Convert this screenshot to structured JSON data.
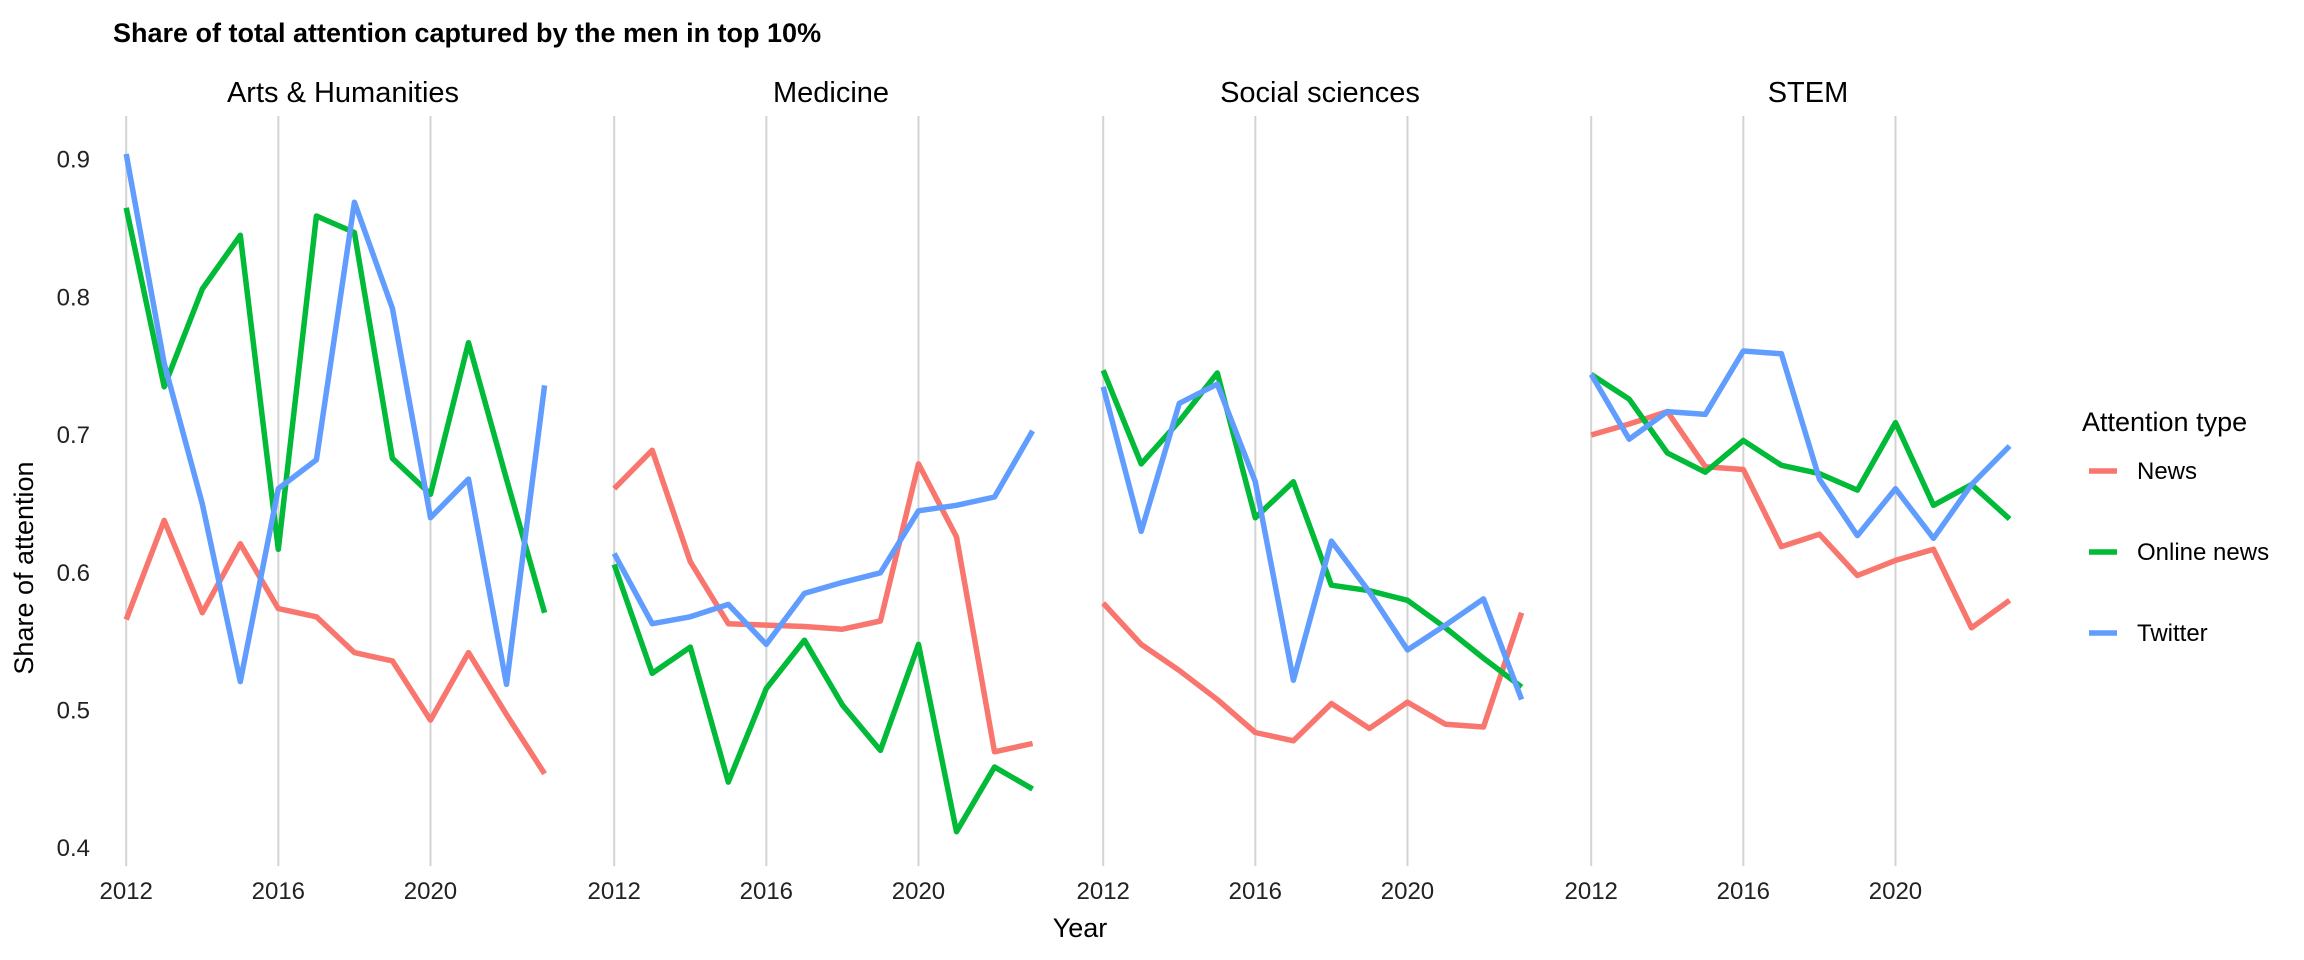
{
  "chart_data": {
    "type": "line",
    "title": "Share of total attention captured by the men in top 10%",
    "xlabel": "Year",
    "ylabel": "Share of attention",
    "x_ticks": [
      2012,
      2016,
      2020
    ],
    "y_ticks": [
      0.4,
      0.5,
      0.6,
      0.7,
      0.8,
      0.9
    ],
    "ylim": [
      0.39,
      0.92
    ],
    "xlim": [
      2011.6,
      2023.8
    ],
    "grid": "vertical",
    "legend": {
      "title": "Attention type",
      "position": "right",
      "entries": [
        {
          "name": "News",
          "color": "#f8766d"
        },
        {
          "name": "Online news",
          "color": "#00ba38"
        },
        {
          "name": "Twitter",
          "color": "#619cff"
        }
      ]
    },
    "panels": [
      {
        "name": "Arts & Humanities",
        "series": [
          {
            "name": "News",
            "x": [
              2012,
              2013,
              2014,
              2015,
              2016,
              2017,
              2018,
              2019,
              2020,
              2021,
              2022,
              2023
            ],
            "values": [
              0.566,
              0.638,
              0.571,
              0.621,
              0.574,
              0.568,
              0.542,
              0.536,
              0.493,
              0.542,
              0.497,
              0.454
            ]
          },
          {
            "name": "Online news",
            "x": [
              2012,
              2013,
              2014,
              2015,
              2016,
              2017,
              2018,
              2019,
              2020,
              2021,
              2022,
              2023
            ],
            "values": [
              0.865,
              0.735,
              0.806,
              0.845,
              0.617,
              0.859,
              0.847,
              0.683,
              0.657,
              0.767,
              0.668,
              0.571
            ]
          },
          {
            "name": "Twitter",
            "x": [
              2012,
              2013,
              2014,
              2015,
              2016,
              2017,
              2018,
              2019,
              2020,
              2021,
              2022,
              2023
            ],
            "values": [
              0.904,
              0.752,
              0.65,
              0.521,
              0.661,
              0.682,
              0.869,
              0.792,
              0.64,
              0.668,
              0.519,
              0.736
            ]
          }
        ]
      },
      {
        "name": "Medicine",
        "series": [
          {
            "name": "News",
            "x": [
              2012,
              2013,
              2014,
              2015,
              2016,
              2017,
              2018,
              2019,
              2020,
              2021,
              2022,
              2023
            ],
            "values": [
              0.661,
              0.689,
              0.608,
              0.563,
              0.562,
              0.561,
              0.559,
              0.565,
              0.679,
              0.626,
              0.47,
              0.476
            ]
          },
          {
            "name": "Online news",
            "x": [
              2012,
              2013,
              2014,
              2015,
              2016,
              2017,
              2018,
              2019,
              2020,
              2021,
              2022,
              2023
            ],
            "values": [
              0.606,
              0.527,
              0.546,
              0.448,
              0.516,
              0.551,
              0.504,
              0.471,
              0.548,
              0.412,
              0.459,
              0.443
            ]
          },
          {
            "name": "Twitter",
            "x": [
              2012,
              2013,
              2014,
              2015,
              2016,
              2017,
              2018,
              2019,
              2020,
              2021,
              2022,
              2023
            ],
            "values": [
              0.614,
              0.563,
              0.568,
              0.577,
              0.548,
              0.585,
              0.593,
              0.6,
              0.645,
              0.649,
              0.655,
              0.703
            ]
          }
        ]
      },
      {
        "name": "Social sciences",
        "series": [
          {
            "name": "News",
            "x": [
              2012,
              2013,
              2014,
              2015,
              2016,
              2017,
              2018,
              2019,
              2020,
              2021,
              2022,
              2023
            ],
            "values": [
              0.578,
              0.548,
              0.529,
              0.508,
              0.484,
              0.478,
              0.505,
              0.487,
              0.506,
              0.49,
              0.488,
              0.571
            ]
          },
          {
            "name": "Online news",
            "x": [
              2012,
              2013,
              2014,
              2015,
              2016,
              2017,
              2018,
              2019,
              2020,
              2021,
              2022,
              2023
            ],
            "values": [
              0.747,
              0.679,
              0.71,
              0.745,
              0.64,
              0.666,
              0.591,
              0.587,
              0.58,
              0.56,
              0.538,
              0.517
            ]
          },
          {
            "name": "Twitter",
            "x": [
              2012,
              2013,
              2014,
              2015,
              2016,
              2017,
              2018,
              2019,
              2020,
              2021,
              2022,
              2023
            ],
            "values": [
              0.735,
              0.63,
              0.723,
              0.737,
              0.666,
              0.522,
              0.623,
              0.586,
              0.544,
              0.562,
              0.581,
              0.508
            ]
          }
        ]
      },
      {
        "name": "STEM",
        "series": [
          {
            "name": "News",
            "x": [
              2012,
              2013,
              2014,
              2015,
              2016,
              2017,
              2018,
              2019,
              2020,
              2021,
              2022,
              2023
            ],
            "values": [
              0.7,
              0.708,
              0.717,
              0.677,
              0.675,
              0.619,
              0.628,
              0.598,
              0.609,
              0.617,
              0.56,
              0.58
            ]
          },
          {
            "name": "Online news",
            "x": [
              2012,
              2013,
              2014,
              2015,
              2016,
              2017,
              2018,
              2019,
              2020,
              2021,
              2022,
              2023
            ],
            "values": [
              0.744,
              0.726,
              0.687,
              0.673,
              0.696,
              0.678,
              0.672,
              0.66,
              0.709,
              0.649,
              0.664,
              0.639
            ]
          },
          {
            "name": "Twitter",
            "x": [
              2012,
              2013,
              2014,
              2015,
              2016,
              2017,
              2018,
              2019,
              2020,
              2021,
              2022,
              2023
            ],
            "values": [
              0.744,
              0.697,
              0.717,
              0.715,
              0.761,
              0.759,
              0.668,
              0.627,
              0.661,
              0.625,
              0.664,
              0.692
            ]
          }
        ]
      }
    ]
  }
}
